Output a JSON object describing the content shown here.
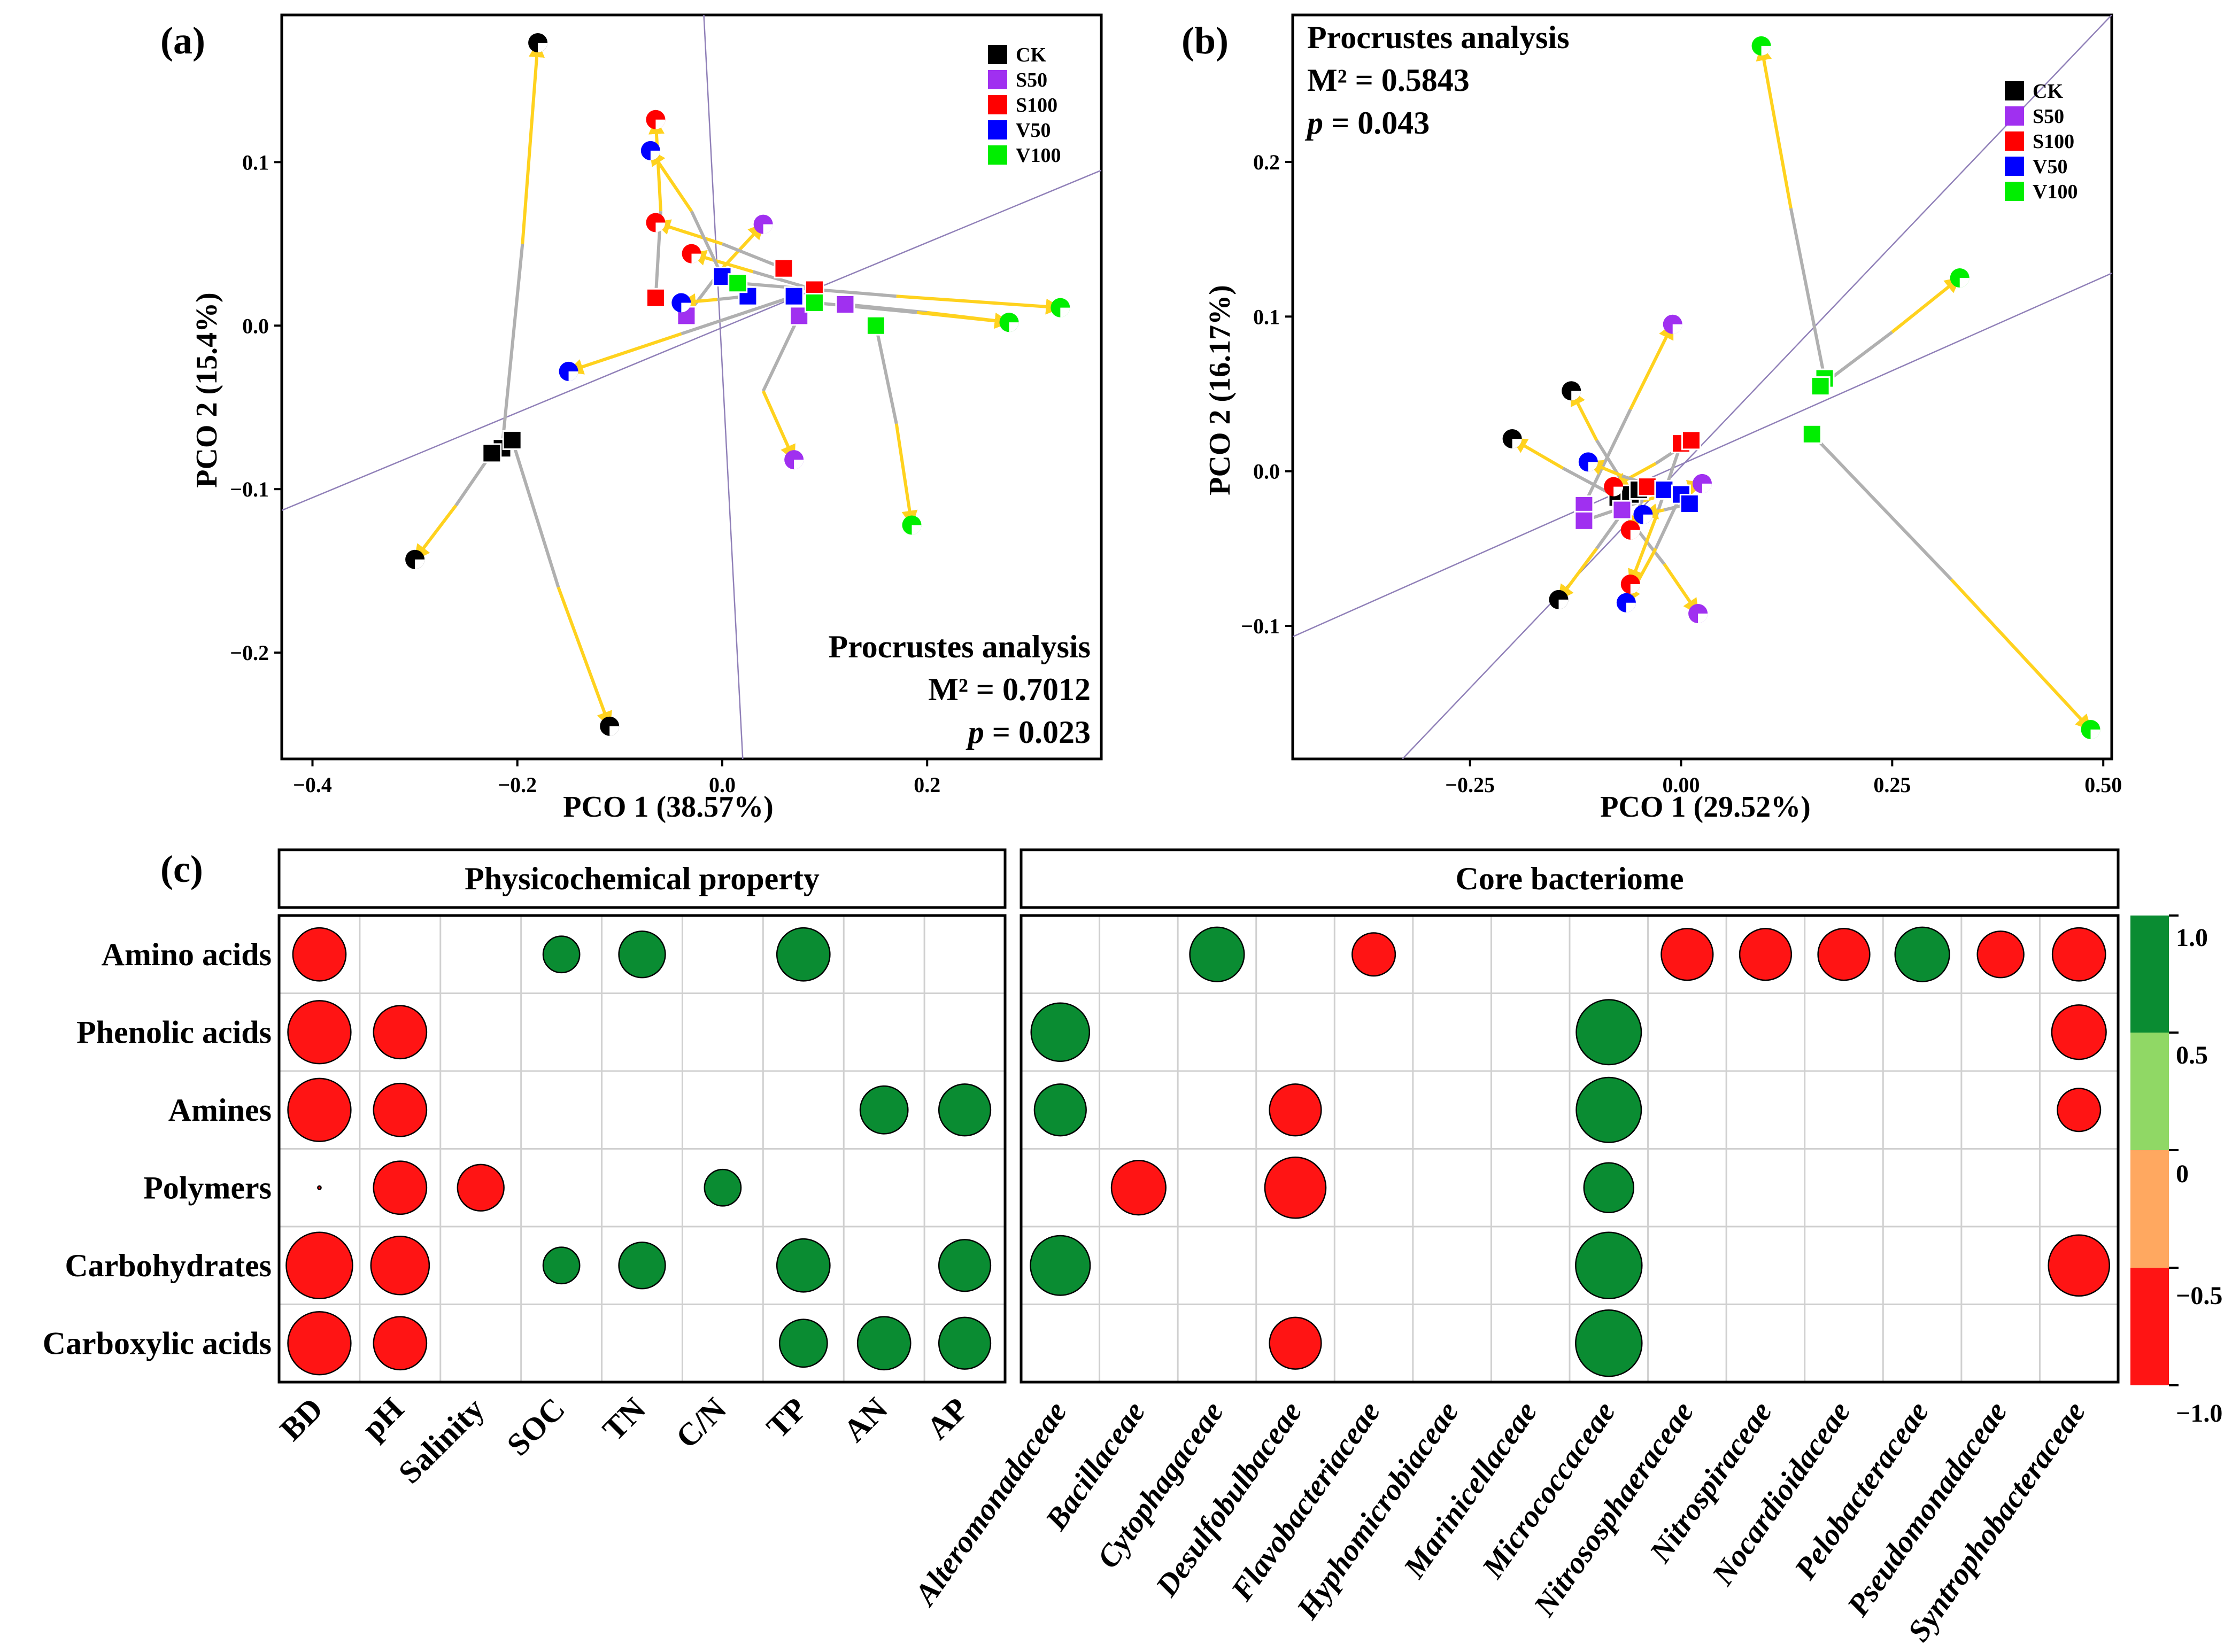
{
  "colors": {
    "CK": "#000000",
    "S50": "#a030f0",
    "S100": "#ff0000",
    "V50": "#0000ff",
    "V100": "#00ee00",
    "arrow": "#ffd21e",
    "link": "#b0b0b0",
    "fitline": "#9080b8",
    "pos": "#0a8c32",
    "neg": "#ff1414",
    "lightpos": "#90d865",
    "lightneg": "#ffa860",
    "grid": "#d0d0d0"
  },
  "chart_data": [
    {
      "type": "scatter",
      "panel_label": "(a)",
      "title": "",
      "xlabel": "PCO 1 (38.57%)",
      "ylabel": "PCO 2 (15.4%)",
      "xlim": [
        -0.43,
        0.37
      ],
      "ylim": [
        -0.265,
        0.19
      ],
      "xticks": [
        -0.4,
        -0.2,
        0.0,
        0.2
      ],
      "xtick_labels": [
        "−0.4",
        "−0.2",
        "0.0",
        "0.2"
      ],
      "yticks": [
        -0.2,
        -0.1,
        0.0,
        0.1
      ],
      "ytick_labels": [
        "−0.2",
        "−0.1",
        "0.0",
        "0.1"
      ],
      "legend": [
        "CK",
        "S50",
        "S100",
        "V50",
        "V100"
      ],
      "legend_position": "top-right",
      "annotation": [
        "Procrustes analysis",
        "M² = 0.7012",
        "p = 0.023"
      ],
      "annotation_position": "bottom-right",
      "fit_lines": [
        {
          "x1": -0.43,
          "y1": -0.113,
          "x2": 0.37,
          "y2": 0.095
        },
        {
          "x1": -0.018,
          "y1": 0.19,
          "x2": 0.02,
          "y2": -0.265
        }
      ],
      "pairs": [
        {
          "group": "CK",
          "square": [
            -0.215,
            -0.075
          ],
          "circle": [
            -0.18,
            0.173
          ],
          "mid": [
            -0.195,
            0.05
          ]
        },
        {
          "group": "CK",
          "square": [
            -0.225,
            -0.078
          ],
          "circle": [
            -0.3,
            -0.143
          ],
          "mid": [
            -0.26,
            -0.11
          ]
        },
        {
          "group": "CK",
          "square": [
            -0.205,
            -0.07
          ],
          "circle": [
            -0.11,
            -0.245
          ],
          "mid": [
            -0.16,
            -0.16
          ]
        },
        {
          "group": "S50",
          "square": [
            -0.035,
            0.006
          ],
          "circle": [
            0.04,
            0.062
          ],
          "mid": [
            0.0,
            0.035
          ]
        },
        {
          "group": "S50",
          "square": [
            0.075,
            0.006
          ],
          "circle": [
            0.07,
            -0.082
          ],
          "mid": [
            0.04,
            -0.04
          ]
        },
        {
          "group": "S50",
          "square": [
            0.12,
            0.013
          ],
          "circle": [
            0.28,
            0.002
          ],
          "mid": [
            0.2,
            0.008
          ]
        },
        {
          "group": "S100",
          "square": [
            -0.065,
            0.017
          ],
          "circle": [
            -0.065,
            0.126
          ],
          "mid": [
            -0.06,
            0.07
          ]
        },
        {
          "group": "S100",
          "square": [
            0.06,
            0.035
          ],
          "circle": [
            -0.065,
            0.063
          ],
          "mid": [
            0.0,
            0.05
          ]
        },
        {
          "group": "S100",
          "square": [
            0.09,
            0.022
          ],
          "circle": [
            -0.03,
            0.044
          ],
          "mid": [
            0.03,
            0.033
          ]
        },
        {
          "group": "V50",
          "square": [
            0.0,
            0.03
          ],
          "circle": [
            -0.07,
            0.107
          ],
          "mid": [
            -0.03,
            0.07
          ]
        },
        {
          "group": "V50",
          "square": [
            0.025,
            0.018
          ],
          "circle": [
            -0.04,
            0.014
          ],
          "mid": [
            -0.005,
            0.016
          ]
        },
        {
          "group": "V50",
          "square": [
            0.07,
            0.018
          ],
          "circle": [
            -0.15,
            -0.028
          ],
          "mid": [
            -0.04,
            -0.005
          ]
        },
        {
          "group": "V100",
          "square": [
            0.015,
            0.026
          ],
          "circle": [
            0.33,
            0.011
          ],
          "mid": [
            0.17,
            0.018
          ]
        },
        {
          "group": "V100",
          "square": [
            0.09,
            0.014
          ],
          "circle": [
            0.28,
            0.002
          ],
          "mid": [
            0.19,
            0.008
          ]
        },
        {
          "group": "V100",
          "square": [
            0.15,
            0.0
          ],
          "circle": [
            0.185,
            -0.122
          ],
          "mid": [
            0.17,
            -0.06
          ]
        }
      ]
    },
    {
      "type": "scatter",
      "panel_label": "(b)",
      "title": "",
      "xlabel": "PCO 1 (29.52%)",
      "ylabel": "PCO 2 (16.17%)",
      "xlim": [
        -0.46,
        0.51
      ],
      "ylim": [
        -0.186,
        0.295
      ],
      "xticks": [
        -0.25,
        0.0,
        0.25,
        0.5
      ],
      "xtick_labels": [
        "−0.25",
        "0.00",
        "0.25",
        "0.50"
      ],
      "yticks": [
        -0.1,
        0.0,
        0.1,
        0.2
      ],
      "ytick_labels": [
        "−0.1",
        "0.0",
        "0.1",
        "0.2"
      ],
      "legend": [
        "CK",
        "S50",
        "S100",
        "V50",
        "V100"
      ],
      "legend_position": "top-right",
      "annotation": [
        "Procrustes analysis",
        "M² = 0.5843",
        "p = 0.043"
      ],
      "annotation_position": "top-left",
      "fit_lines": [
        {
          "x1": -0.46,
          "y1": -0.107,
          "x2": 0.51,
          "y2": 0.128
        },
        {
          "x1": -0.33,
          "y1": -0.186,
          "x2": 0.51,
          "y2": 0.295
        }
      ],
      "pairs": [
        {
          "group": "CK",
          "square": [
            -0.075,
            -0.017
          ],
          "circle": [
            -0.2,
            0.021
          ],
          "mid": [
            -0.14,
            0.002
          ]
        },
        {
          "group": "CK",
          "square": [
            -0.06,
            -0.015
          ],
          "circle": [
            -0.13,
            0.052
          ],
          "mid": [
            -0.1,
            0.02
          ]
        },
        {
          "group": "CK",
          "square": [
            -0.05,
            -0.012
          ],
          "circle": [
            -0.145,
            -0.083
          ],
          "mid": [
            -0.1,
            -0.05
          ]
        },
        {
          "group": "S50",
          "square": [
            -0.115,
            -0.022
          ],
          "circle": [
            -0.01,
            0.095
          ],
          "mid": [
            -0.06,
            0.04
          ]
        },
        {
          "group": "S50",
          "square": [
            -0.115,
            -0.032
          ],
          "circle": [
            0.025,
            -0.008
          ],
          "mid": [
            -0.05,
            -0.02
          ]
        },
        {
          "group": "S50",
          "square": [
            -0.07,
            -0.025
          ],
          "circle": [
            0.02,
            -0.092
          ],
          "mid": [
            -0.02,
            -0.06
          ]
        },
        {
          "group": "S100",
          "square": [
            -0.04,
            -0.01
          ],
          "circle": [
            -0.06,
            -0.038
          ],
          "mid": [
            -0.05,
            -0.024
          ]
        },
        {
          "group": "S100",
          "square": [
            0.0,
            0.018
          ],
          "circle": [
            -0.06,
            -0.073
          ],
          "mid": [
            -0.03,
            -0.03
          ]
        },
        {
          "group": "S100",
          "square": [
            0.012,
            0.02
          ],
          "circle": [
            -0.08,
            -0.01
          ],
          "mid": [
            -0.03,
            0.005
          ]
        },
        {
          "group": "V50",
          "square": [
            -0.02,
            -0.012
          ],
          "circle": [
            -0.11,
            0.006
          ],
          "mid": [
            -0.07,
            -0.003
          ]
        },
        {
          "group": "V50",
          "square": [
            0.0,
            -0.015
          ],
          "circle": [
            -0.065,
            -0.085
          ],
          "mid": [
            -0.03,
            -0.05
          ]
        },
        {
          "group": "V50",
          "square": [
            0.01,
            -0.021
          ],
          "circle": [
            -0.045,
            -0.028
          ],
          "mid": [
            -0.02,
            -0.025
          ]
        },
        {
          "group": "V100",
          "square": [
            0.17,
            0.06
          ],
          "circle": [
            0.095,
            0.275
          ],
          "mid": [
            0.13,
            0.17
          ]
        },
        {
          "group": "V100",
          "square": [
            0.165,
            0.055
          ],
          "circle": [
            0.33,
            0.125
          ],
          "mid": [
            0.25,
            0.09
          ]
        },
        {
          "group": "V100",
          "square": [
            0.155,
            0.024
          ],
          "circle": [
            0.485,
            -0.167
          ],
          "mid": [
            0.32,
            -0.07
          ]
        }
      ]
    },
    {
      "type": "heatmap",
      "panel_label": "(c)",
      "rows": [
        "Amino acids",
        "Phenolic acids",
        "Amines",
        "Polymers",
        "Carbohydrates",
        "Carboxylic acids"
      ],
      "left_title": "Physicochemical property",
      "left_columns": [
        "BD",
        "pH",
        "Salinity",
        "SOC",
        "TN",
        "C/N",
        "TP",
        "AN",
        "AP"
      ],
      "left_values": [
        [
          -0.8,
          null,
          null,
          0.55,
          0.7,
          null,
          0.8,
          null,
          null
        ],
        [
          -0.95,
          -0.8,
          null,
          null,
          null,
          null,
          null,
          null,
          null
        ],
        [
          -0.95,
          -0.8,
          null,
          null,
          null,
          null,
          null,
          0.72,
          0.78
        ],
        [
          -0.05,
          -0.8,
          -0.7,
          null,
          null,
          0.55,
          null,
          null,
          null
        ],
        [
          -1.0,
          -0.88,
          null,
          0.55,
          0.7,
          null,
          0.8,
          null,
          0.78
        ],
        [
          -0.95,
          -0.8,
          null,
          null,
          null,
          null,
          0.72,
          0.8,
          0.78
        ]
      ],
      "right_title": "Core bacteriome",
      "right_columns": [
        "Alteromonadaceae",
        "Bacillaceae",
        "Cytophagaceae",
        "Desulfobulbaceae",
        "Flavobacteriaceae",
        "Hyphomicrobiaceae",
        "Marinicellaceae",
        "Micrococcaceae",
        "Nitrososphaeraceae",
        "Nitrospiraceae",
        "Nocardioidaceae",
        "Pelobacteraceae",
        "Pseudomonadaceae",
        "Syntrophobacteraceae"
      ],
      "right_values": [
        [
          null,
          null,
          0.82,
          null,
          -0.65,
          null,
          null,
          null,
          -0.78,
          -0.78,
          -0.78,
          0.82,
          -0.7,
          -0.8
        ],
        [
          0.88,
          null,
          null,
          null,
          null,
          null,
          null,
          0.98,
          null,
          null,
          null,
          null,
          null,
          -0.82
        ],
        [
          0.78,
          null,
          null,
          -0.78,
          null,
          null,
          null,
          0.98,
          null,
          null,
          null,
          null,
          null,
          -0.65
        ],
        [
          null,
          -0.82,
          null,
          -0.92,
          null,
          null,
          null,
          0.75,
          null,
          null,
          null,
          null,
          null,
          null
        ],
        [
          0.9,
          null,
          null,
          null,
          null,
          null,
          null,
          1.0,
          null,
          null,
          null,
          null,
          null,
          -0.92
        ],
        [
          null,
          null,
          null,
          -0.78,
          null,
          null,
          null,
          1.0,
          null,
          null,
          null,
          null,
          null,
          null
        ]
      ],
      "colorbar": {
        "ticks": [
          "1.0",
          "0.5",
          "0",
          "−0.5",
          "−1.0"
        ],
        "segments": [
          "pos",
          "lightpos",
          "lightneg",
          "neg"
        ]
      }
    }
  ]
}
